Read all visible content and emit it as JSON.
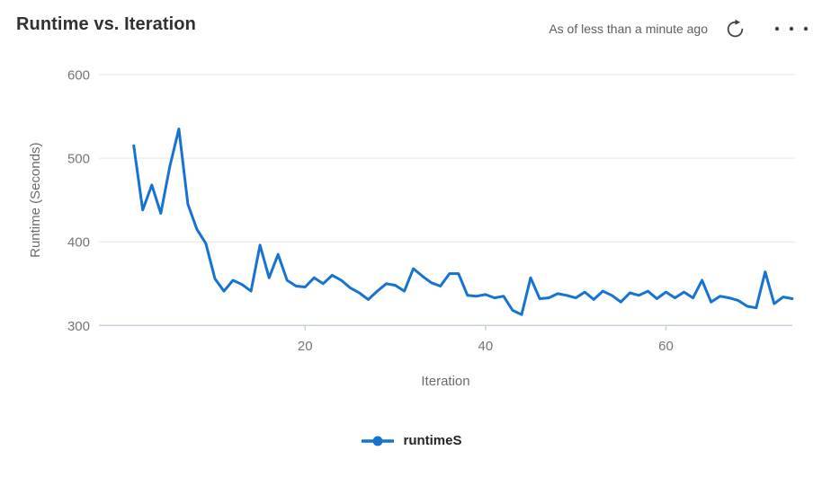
{
  "header": {
    "title": "Runtime vs. Iteration",
    "as_of": "As of less than a minute ago",
    "refresh_icon": "refresh-icon",
    "more_icon": "more-horizontal-icon"
  },
  "chart_data": {
    "type": "line",
    "title": "Runtime vs. Iteration",
    "xlabel": "Iteration",
    "ylabel": "Runtime (Seconds)",
    "xlim": [
      1,
      74
    ],
    "ylim": [
      300,
      600
    ],
    "x_ticks": [
      20,
      40,
      60
    ],
    "y_ticks": [
      300,
      400,
      500,
      600
    ],
    "grid": "horizontal-gridlines-on",
    "legend_position": "bottom-center",
    "series": [
      {
        "name": "runtimeS",
        "color": "#1673d1",
        "x_start": 1,
        "x_step": 1,
        "values": [
          515,
          438,
          468,
          434,
          490,
          535,
          445,
          415,
          398,
          356,
          341,
          354,
          349,
          341,
          396,
          357,
          385,
          354,
          347,
          346,
          357,
          350,
          360,
          354,
          345,
          339,
          331,
          341,
          350,
          348,
          341,
          368,
          359,
          351,
          347,
          362,
          362,
          336,
          335,
          337,
          333,
          335,
          318,
          313,
          357,
          332,
          333,
          338,
          336,
          333,
          340,
          331,
          341,
          336,
          328,
          339,
          336,
          341,
          332,
          340,
          333,
          340,
          333,
          354,
          328,
          335,
          333,
          330,
          323,
          321,
          364,
          326,
          334,
          332
        ]
      }
    ]
  },
  "colors": {
    "line": "#1673d1",
    "grid": "#e6e6e6",
    "axis_line": "#c8d1e8",
    "title_text": "#323130",
    "secondary_text": "#605e5c",
    "tick_text": "#757575",
    "legend_text": "#252423",
    "icon": "#424242"
  }
}
